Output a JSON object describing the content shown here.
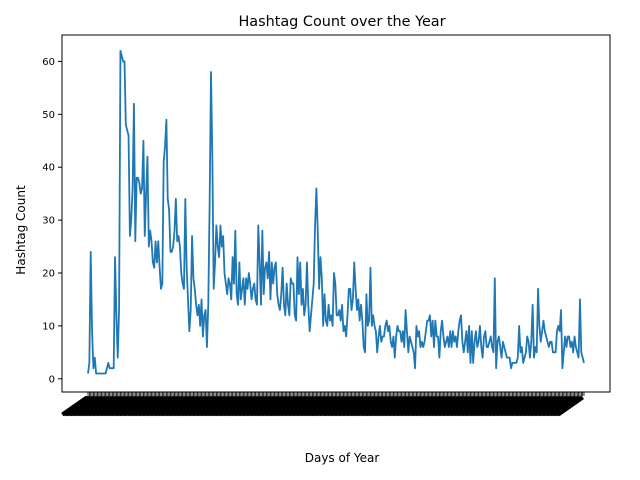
{
  "chart_data": {
    "type": "line",
    "title": "Hashtag Count over the Year",
    "xlabel": "Days of Year",
    "ylabel": "Hashtag Count",
    "ylim": [
      -2.5,
      65
    ],
    "yticks": [
      0,
      10,
      20,
      30,
      40,
      50,
      60
    ],
    "grid": false,
    "color": "#1f77b4",
    "series": [
      {
        "values": [
          1,
          3,
          24,
          9,
          2,
          4,
          1,
          1,
          1,
          1,
          1,
          1,
          1,
          1,
          2,
          3,
          2,
          2,
          2,
          2,
          23,
          12,
          4,
          13,
          62,
          61,
          60,
          60,
          48,
          47,
          46,
          27,
          30,
          36,
          52,
          26,
          38,
          38,
          37,
          35,
          36,
          45,
          27,
          35,
          42,
          25,
          28,
          26,
          22,
          21,
          26,
          22,
          26,
          21,
          17,
          18,
          41,
          44,
          49,
          34,
          32,
          24,
          24,
          25,
          28,
          34,
          26,
          27,
          25,
          20,
          18,
          17,
          34,
          21,
          15,
          9,
          13,
          27,
          19,
          17,
          14,
          12,
          14,
          10,
          15,
          8,
          12,
          13,
          6,
          14,
          33,
          58,
          42,
          17,
          22,
          29,
          25,
          23,
          29,
          25,
          27,
          20,
          18,
          16,
          19,
          18,
          15,
          23,
          18,
          28,
          16,
          14,
          22,
          15,
          17,
          19,
          14,
          19,
          17,
          20,
          18,
          15,
          17,
          18,
          15,
          14,
          29,
          22,
          14,
          28,
          16,
          21,
          22,
          19,
          24,
          15,
          22,
          18,
          21,
          22,
          16,
          14,
          13,
          16,
          21,
          14,
          12,
          18,
          14,
          12,
          19,
          18,
          18,
          12,
          11,
          23,
          16,
          22,
          14,
          17,
          12,
          14,
          22,
          14,
          9,
          12,
          15,
          18,
          29,
          36,
          28,
          17,
          23,
          19,
          10,
          16,
          11,
          10,
          14,
          11,
          12,
          10,
          20,
          18,
          12,
          12,
          13,
          11,
          14,
          9,
          10,
          8,
          12,
          17,
          17,
          13,
          15,
          22,
          17,
          13,
          15,
          11,
          14,
          11,
          6,
          5,
          16,
          10,
          11,
          21,
          10,
          12,
          10,
          9,
          5,
          8,
          10,
          7,
          8,
          8,
          10,
          11,
          9,
          10,
          7,
          6,
          8,
          4,
          8,
          10,
          9,
          9,
          7,
          9,
          6,
          13,
          9,
          5,
          8,
          7,
          6,
          5,
          2,
          10,
          8,
          9,
          6,
          7,
          6,
          7,
          9,
          11,
          11,
          12,
          8,
          11,
          6,
          11,
          8,
          8,
          4,
          9,
          11,
          8,
          6,
          7,
          8,
          6,
          9,
          6,
          9,
          7,
          8,
          6,
          9,
          11,
          12,
          7,
          5,
          7,
          9,
          5,
          10,
          3,
          9,
          3,
          7,
          9,
          6,
          7,
          10,
          6,
          4,
          8,
          9,
          6,
          6,
          7,
          8,
          6,
          5,
          19,
          2,
          7,
          8,
          6,
          4,
          7,
          6,
          5,
          4,
          4,
          4,
          2,
          3,
          3,
          3,
          3,
          4,
          10,
          5,
          6,
          3,
          4,
          5,
          8,
          7,
          4,
          7,
          14,
          4,
          6,
          5,
          17,
          10,
          7,
          9,
          11,
          9,
          8,
          7,
          6,
          7,
          7,
          5,
          5,
          5,
          9,
          10,
          9,
          13,
          2,
          5,
          8,
          6,
          8,
          8,
          6,
          7,
          5,
          8,
          6,
          5,
          4,
          15,
          5,
          4,
          3
        ]
      }
    ]
  }
}
